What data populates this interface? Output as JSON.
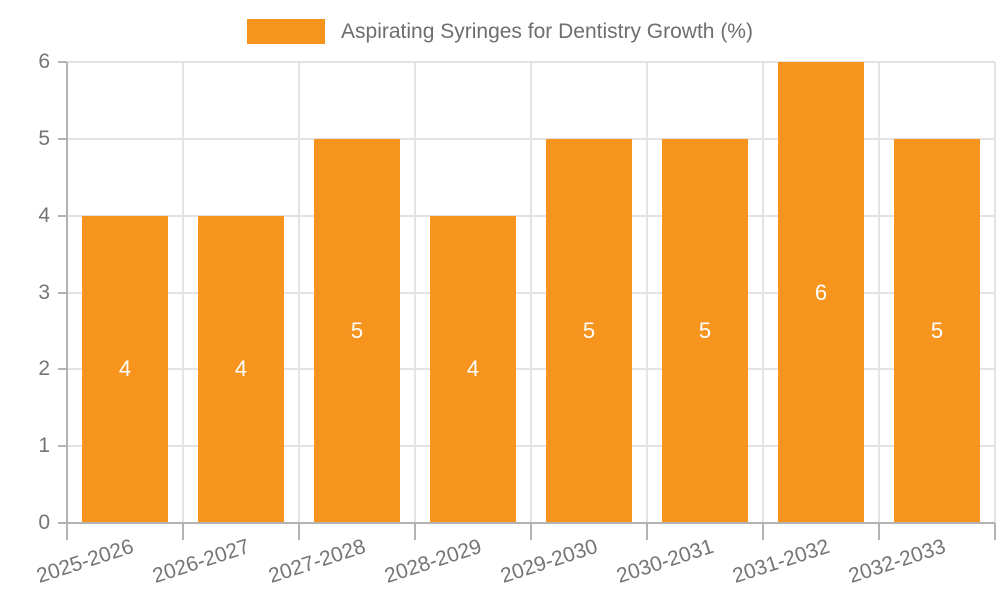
{
  "chart_data": {
    "type": "bar",
    "title": "Aspirating Syringes for Dentistry Growth (%)",
    "categories": [
      "2025-2026",
      "2026-2027",
      "2027-2028",
      "2028-2029",
      "2029-2030",
      "2030-2031",
      "2031-2032",
      "2032-2033"
    ],
    "values": [
      4,
      4,
      5,
      4,
      5,
      5,
      6,
      5
    ],
    "bar_value_labels": [
      "4",
      "4",
      "5",
      "4",
      "5",
      "5",
      "6",
      "5"
    ],
    "xlabel": "",
    "ylabel": "",
    "ylim": [
      0,
      6
    ],
    "yticks": [
      "0",
      "1",
      "2",
      "3",
      "4",
      "5",
      "6"
    ],
    "grid": "horizontal and vertical gridlines on",
    "legend_position": "top-center",
    "colors": {
      "bar": "#F7941E",
      "bar_label": "#FFFFFF",
      "grid": "#E3E3E3",
      "axis": "#B3B3B3",
      "tick_label": "#757575",
      "title": "#6E6E6E",
      "background": "#FFFFFF"
    }
  }
}
